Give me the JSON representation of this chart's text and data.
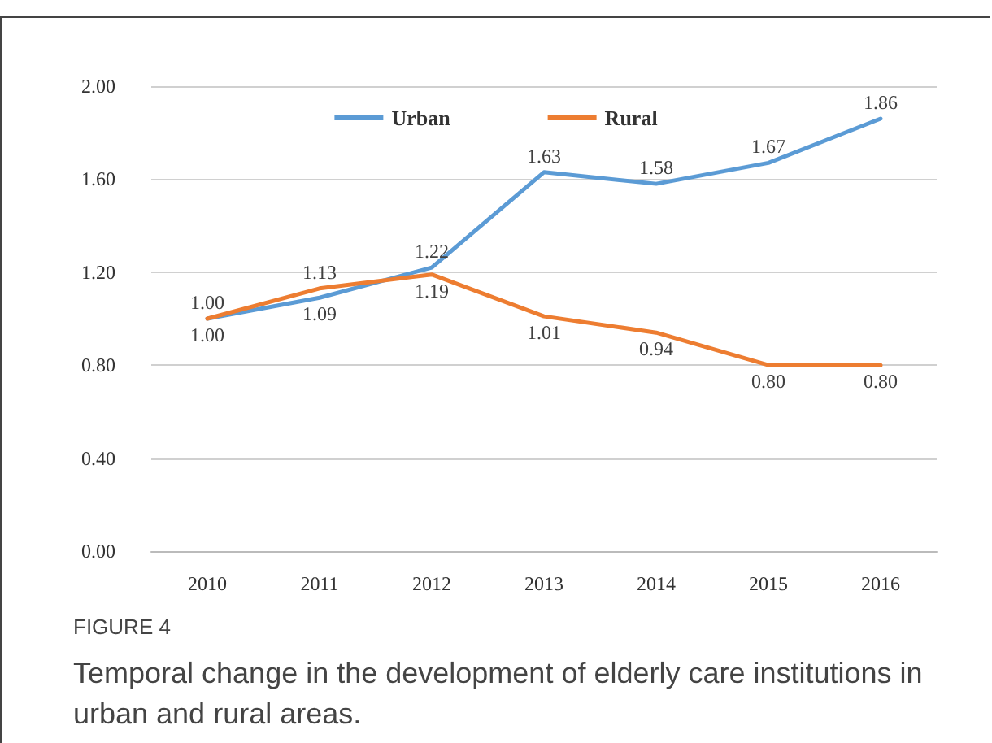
{
  "chart_data": {
    "type": "line",
    "categories": [
      "2010",
      "2011",
      "2012",
      "2013",
      "2014",
      "2015",
      "2016"
    ],
    "series": [
      {
        "name": "Urban",
        "color": "#5b9bd5",
        "values": [
          1.0,
          1.09,
          1.22,
          1.63,
          1.58,
          1.67,
          1.86
        ],
        "value_labels": [
          "1.00",
          "1.09",
          "1.22",
          "1.63",
          "1.58",
          "1.67",
          "1.86"
        ]
      },
      {
        "name": "Rural",
        "color": "#ed7d31",
        "values": [
          1.0,
          1.13,
          1.19,
          1.01,
          0.94,
          0.8,
          0.8
        ],
        "value_labels": [
          "1.00",
          "1.13",
          "1.19",
          "1.01",
          "0.94",
          "0.80",
          "0.80"
        ]
      }
    ],
    "ylim": [
      0,
      2
    ],
    "yticks": [
      {
        "value": 0,
        "label": "0.00"
      },
      {
        "value": 0.4,
        "label": "0.40"
      },
      {
        "value": 0.8,
        "label": "0.80"
      },
      {
        "value": 1.2,
        "label": "1.20"
      },
      {
        "value": 1.6,
        "label": "1.60"
      },
      {
        "value": 2,
        "label": "2.00"
      }
    ],
    "grid": "y",
    "legend": "top",
    "marker": "none",
    "line_style": "solid",
    "annotations": [
      "FIGURE 4",
      "Temporal change in the development of elderly care institutions in urban and rural areas."
    ]
  }
}
